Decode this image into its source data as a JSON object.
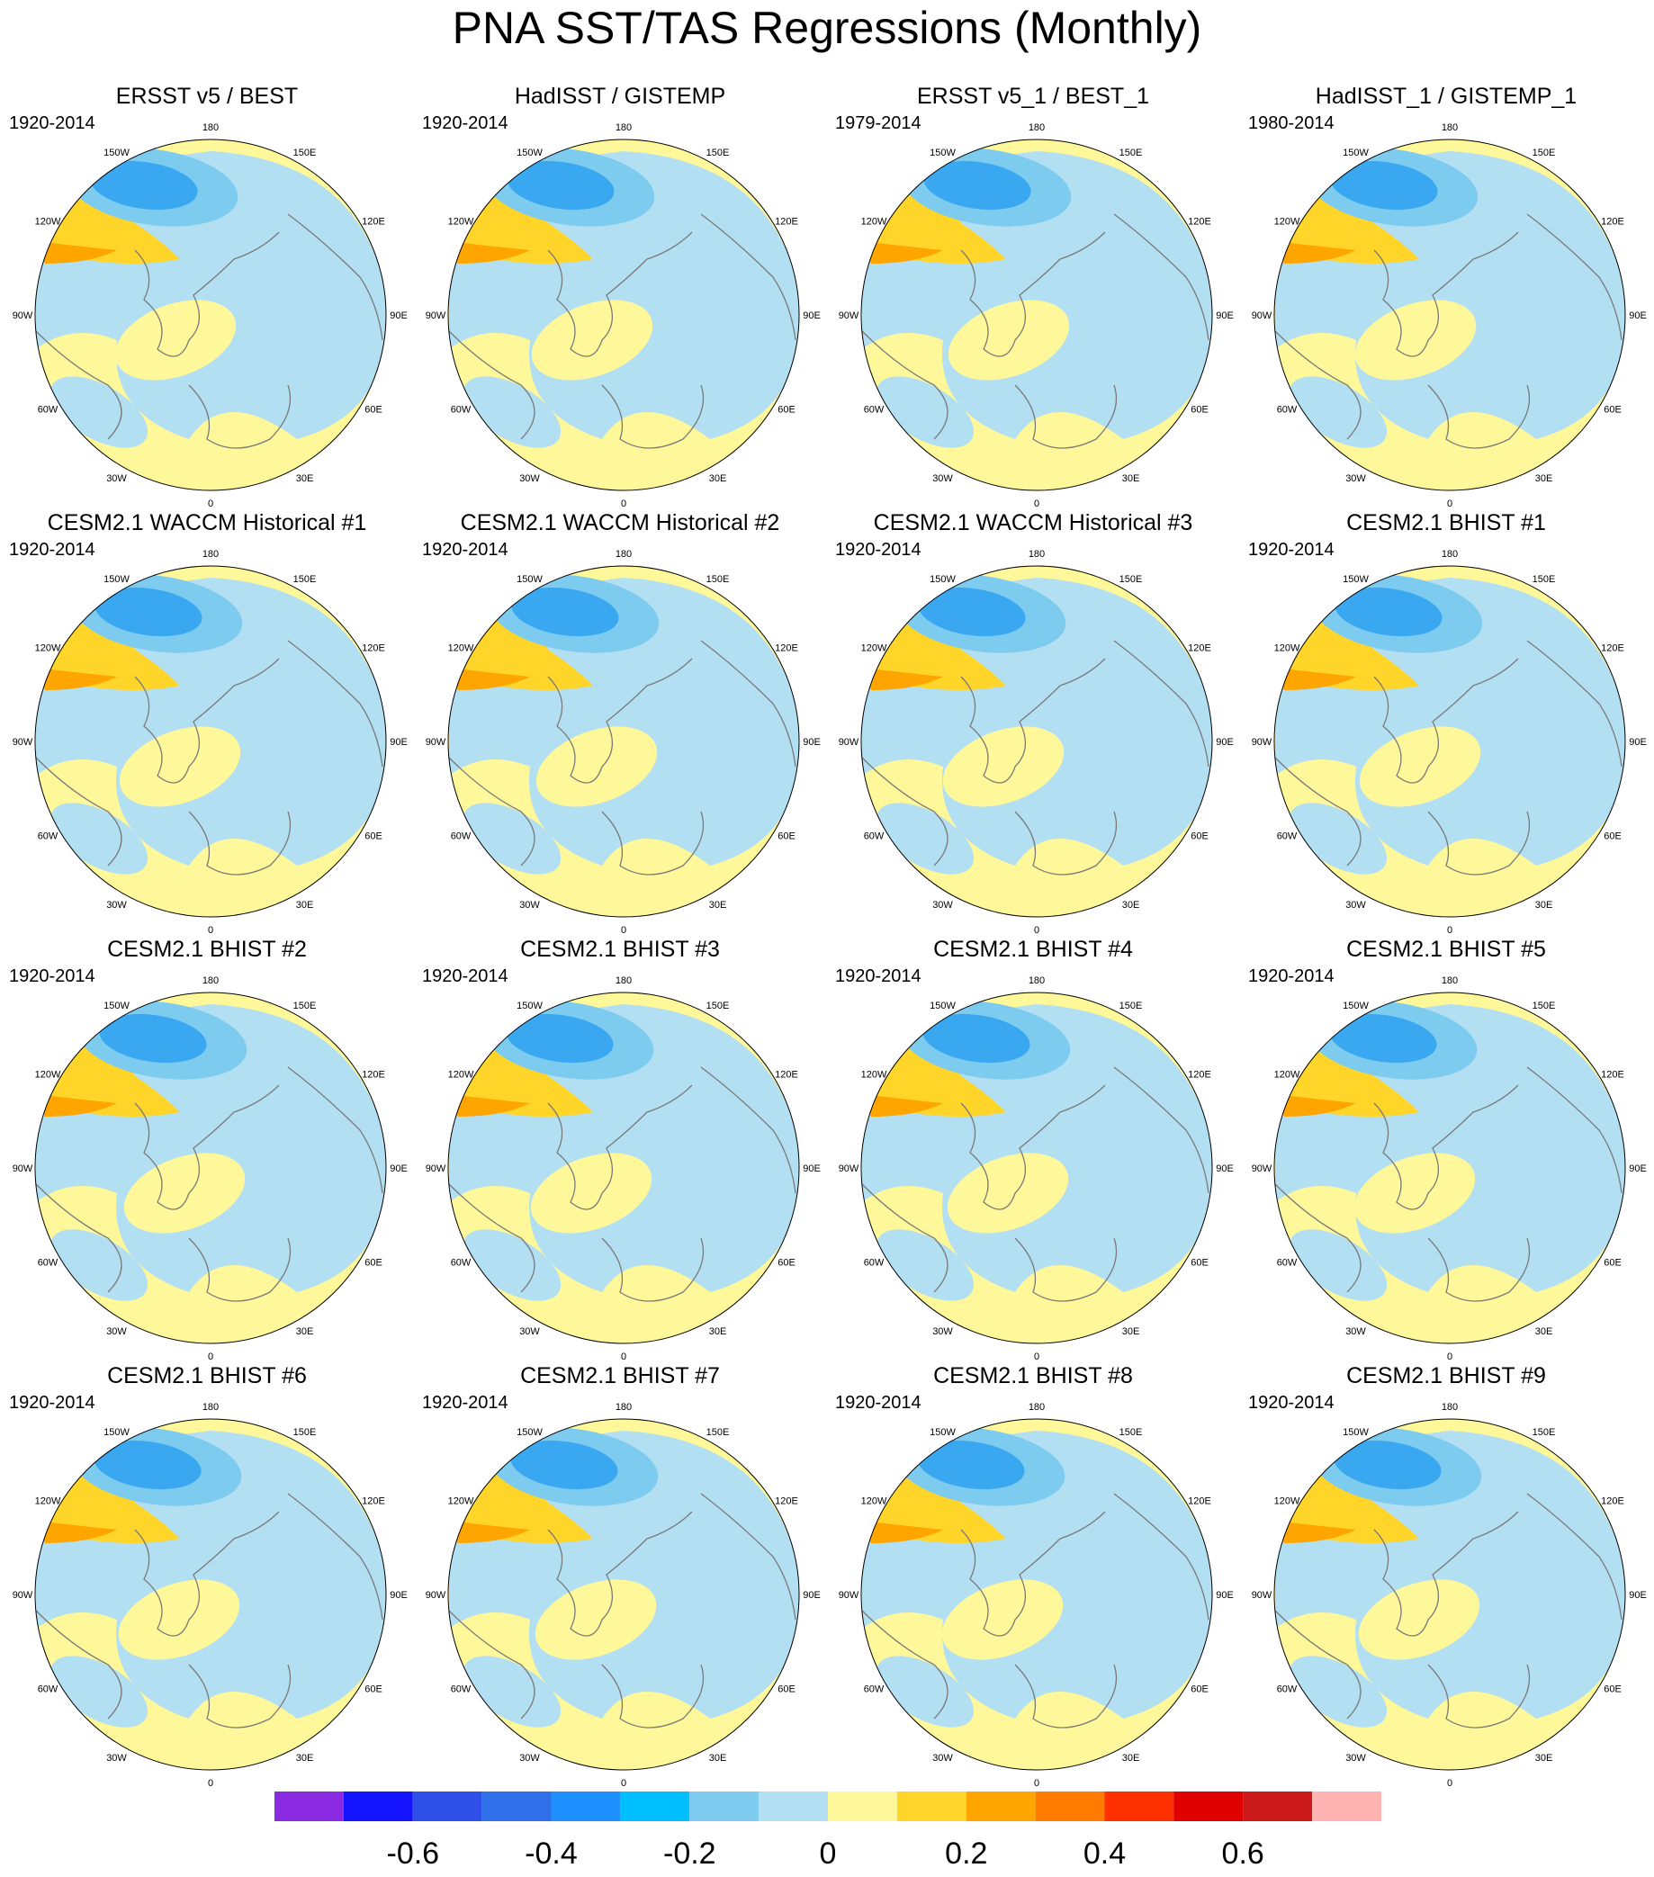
{
  "title": "PNA SST/TAS Regressions (Monthly)",
  "panels": [
    {
      "title": "ERSST v5 / BEST",
      "period": "1920-2014"
    },
    {
      "title": "HadISST / GISTEMP",
      "period": "1920-2014"
    },
    {
      "title": "ERSST v5_1 / BEST_1",
      "period": "1979-2014"
    },
    {
      "title": "HadISST_1 / GISTEMP_1",
      "period": "1980-2014"
    },
    {
      "title": "CESM2.1 WACCM Historical #1",
      "period": "1920-2014"
    },
    {
      "title": "CESM2.1 WACCM Historical #2",
      "period": "1920-2014"
    },
    {
      "title": "CESM2.1 WACCM Historical #3",
      "period": "1920-2014"
    },
    {
      "title": "CESM2.1 BHIST #1",
      "period": "1920-2014"
    },
    {
      "title": "CESM2.1 BHIST #2",
      "period": "1920-2014"
    },
    {
      "title": "CESM2.1 BHIST #3",
      "period": "1920-2014"
    },
    {
      "title": "CESM2.1 BHIST #4",
      "period": "1920-2014"
    },
    {
      "title": "CESM2.1 BHIST #5",
      "period": "1920-2014"
    },
    {
      "title": "CESM2.1 BHIST #6",
      "period": "1920-2014"
    },
    {
      "title": "CESM2.1 BHIST #7",
      "period": "1920-2014"
    },
    {
      "title": "CESM2.1 BHIST #8",
      "period": "1920-2014"
    },
    {
      "title": "CESM2.1 BHIST #9",
      "period": "1920-2014"
    }
  ],
  "longitude_labels": [
    "180",
    "150E",
    "120E",
    "90E",
    "60E",
    "30E",
    "0",
    "30W",
    "60W",
    "90W",
    "120W",
    "150W"
  ],
  "colorbar": {
    "colors": [
      "#8a2be2",
      "#1414ff",
      "#2e4fe8",
      "#3070e8",
      "#1e90ff",
      "#00bfff",
      "#7ecbf0",
      "#b3dff2",
      "#fff89a",
      "#ffd52a",
      "#ffa500",
      "#ff7a00",
      "#ff3000",
      "#e00000",
      "#cc1a1a",
      "#ffb3b3"
    ],
    "labels": [
      "-0.6",
      "-0.4",
      "-0.2",
      "0",
      "0.2",
      "0.4",
      "0.6"
    ],
    "label_values": [
      -0.6,
      -0.4,
      -0.2,
      0,
      0.2,
      0.4,
      0.6
    ],
    "min": -0.8,
    "max": 0.8,
    "interval": 0.1
  },
  "style": {
    "neutral_positive": "#fff89a",
    "neutral_negative": "#b3dff2",
    "mid_negative": "#7ecbf0",
    "strong_negative": "#3aa8f0",
    "moderate_positive": "#ffd52a",
    "strong_positive": "#ffa500",
    "coast": "#7a7a7a"
  }
}
